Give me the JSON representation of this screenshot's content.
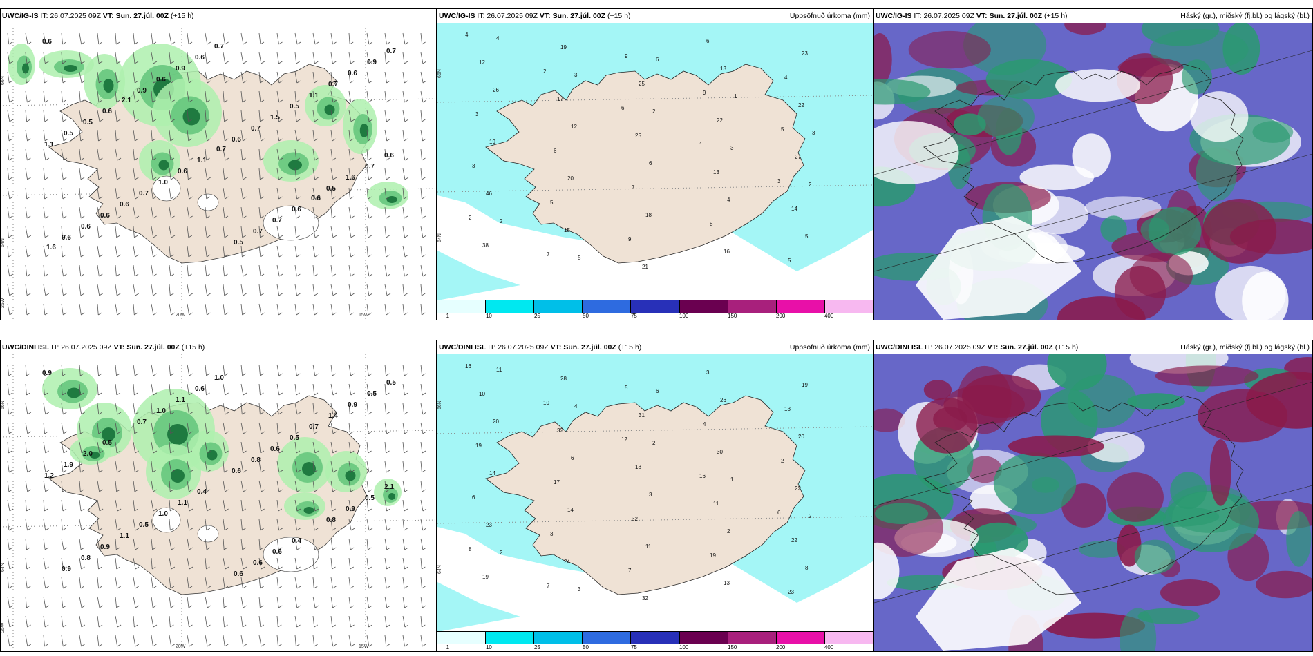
{
  "rows": [
    {
      "model": "UWC/IG-IS",
      "it_label": "IT:",
      "it_value": "26.07.2025 09Z",
      "vt_label": "VT:",
      "vt_value": "Sun. 27.júl. 00Z",
      "lead": "(+15 h)"
    },
    {
      "model": "UWC/DINI ISL",
      "it_label": "IT:",
      "it_value": "26.07.2025 09Z",
      "vt_label": "VT:",
      "vt_value": "Sun. 27.júl. 00Z",
      "lead": "(+15 h)"
    }
  ],
  "precip_title": "Uppsöfnuð úrkoma (mm)",
  "cloud_title": "Háský (gr.), miðský (fj.bl.) og lágský (bl.)",
  "legend": {
    "ticks": [
      "1",
      "10",
      "25",
      "50",
      "75",
      "100",
      "150",
      "200",
      "400"
    ],
    "colors": [
      "#e6ffff",
      "#00e8f0",
      "#00bfe8",
      "#2e6be0",
      "#2830b8",
      "#6a0050",
      "#a8207c",
      "#e810a8",
      "#f7b8f0"
    ]
  },
  "axis_labels": {
    "lat66": "66N",
    "lat64": "64N",
    "lon25": "25W",
    "lon20": "20W",
    "lon15": "15W"
  },
  "colors": {
    "land": "#efe2d5",
    "light_precip": "#aef0ae",
    "med_precip": "#62c47a",
    "heavy_precip": "#1f7a40",
    "cyan_precip": "#a4f6f6",
    "cyan_mid": "#00e0f0",
    "cloud_purple": "#6767c8",
    "cloud_maroon": "#8a1a4a",
    "cloud_green": "#2a9a70"
  },
  "values": {
    "p1_left": [
      "0.6",
      "0.9",
      "0.6",
      "0.5",
      "0.6",
      "0.6",
      "0.7",
      "1.6",
      "0.6",
      "0.9",
      "1.5",
      "0.7",
      "0.6",
      "0.6",
      "0.5",
      "0.6",
      "0.6",
      "0.7",
      "1.1",
      "1.1",
      "0.7",
      "0.5",
      "0.7",
      "0.5",
      "1.0",
      "0.7",
      "0.6",
      "0.5",
      "0.6",
      "0.7",
      "0.9",
      "0.6",
      "1.1",
      "0.6",
      "0.7",
      "2.1",
      "0.7",
      "0.6",
      "1.6"
    ],
    "p1_mid": [
      "4",
      "2",
      "6",
      "1",
      "3",
      "2",
      "7",
      "9",
      "9",
      "5",
      "3",
      "5",
      "9",
      "6",
      "4",
      "3",
      "6",
      "7",
      "8",
      "5",
      "12",
      "17",
      "25",
      "13",
      "14",
      "38",
      "19",
      "25",
      "22",
      "27",
      "46",
      "15",
      "21",
      "13",
      "22",
      "19",
      "20",
      "18",
      "16",
      "23",
      "26",
      "12",
      "6",
      "4",
      "5",
      "4",
      "3",
      "2",
      "3",
      "2",
      "2",
      "5",
      "6",
      "1",
      "3"
    ],
    "p2_left": [
      "0.9",
      "0.7",
      "0.6",
      "0.8",
      "0.9",
      "1.0",
      "0.8",
      "0.9",
      "0.8",
      "1.1",
      "0.6",
      "0.5",
      "0.9",
      "0.6",
      "0.5",
      "2.1",
      "1.1",
      "1.0",
      "0.7",
      "1.2",
      "0.5",
      "0.6",
      "1.4",
      "1.9",
      "1.0",
      "0.6",
      "0.9",
      "2.0",
      "1.1",
      "0.6",
      "0.5",
      "0.5",
      "0.4",
      "0.4",
      "0.5"
    ],
    "p2_mid": [
      "16",
      "10",
      "12",
      "16",
      "6",
      "8",
      "7",
      "5",
      "4",
      "2",
      "6",
      "3",
      "7",
      "3",
      "13",
      "19",
      "17",
      "32",
      "19",
      "23",
      "10",
      "32",
      "18",
      "11",
      "22",
      "19",
      "28",
      "31",
      "30",
      "22",
      "23",
      "24",
      "32",
      "26",
      "20",
      "14",
      "14",
      "11",
      "13",
      "19",
      "20",
      "6",
      "3",
      "2",
      "8",
      "11",
      "4",
      "2",
      "1",
      "2",
      "2",
      "3",
      "6"
    ]
  }
}
